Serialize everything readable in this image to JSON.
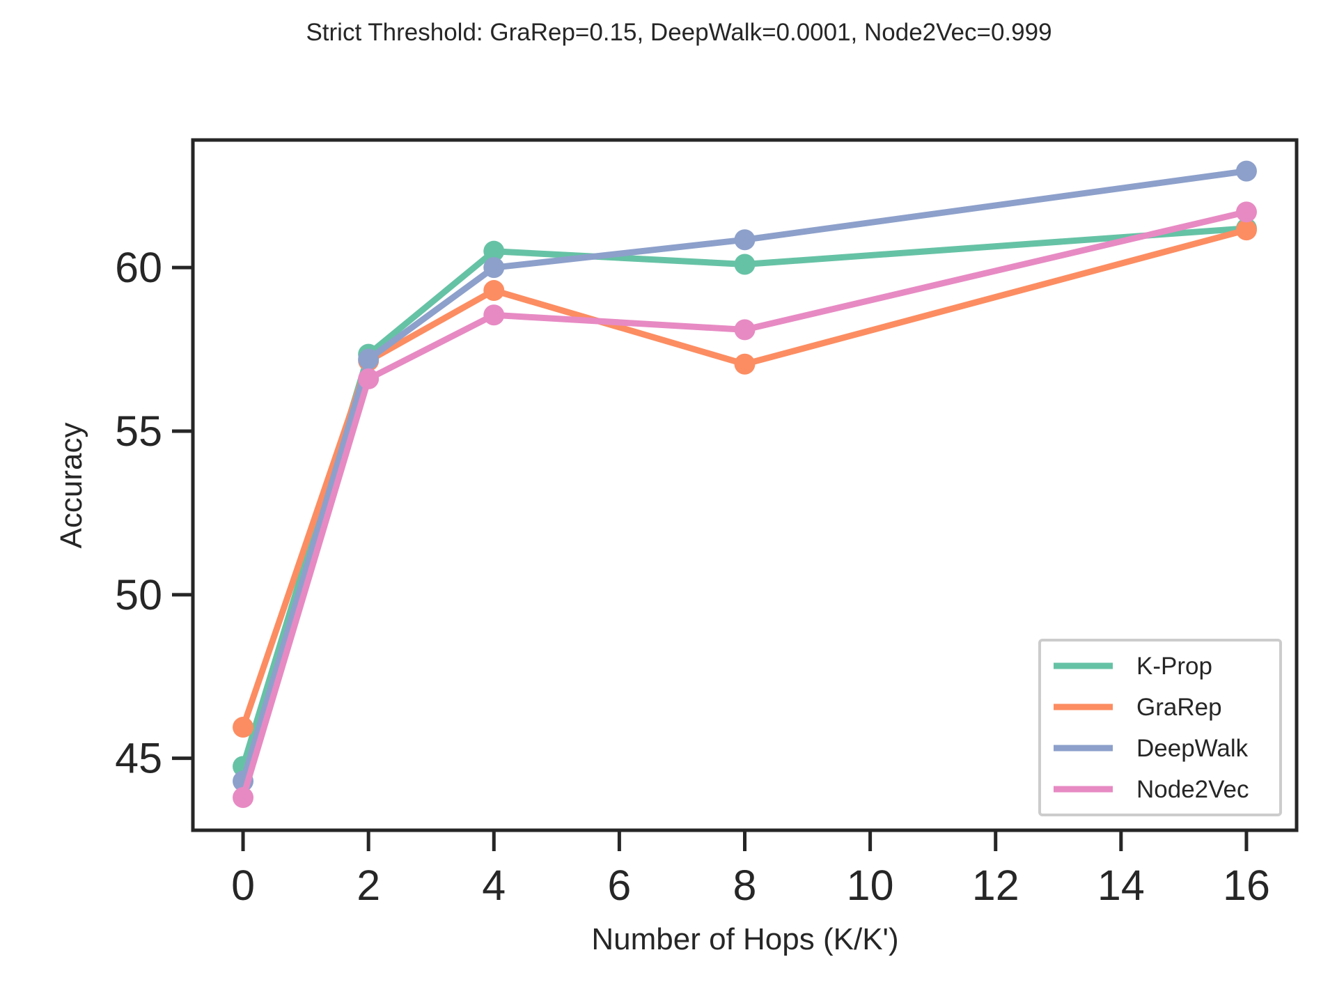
{
  "chart_data": {
    "type": "line",
    "title": "Strict Threshold: GraRep=0.15, DeepWalk=0.0001, Node2Vec=0.999",
    "xlabel": "Number of Hops (K/K')",
    "ylabel": "Accuracy",
    "x": [
      0,
      2,
      4,
      8,
      16
    ],
    "xlim": [
      -0.8,
      16.8
    ],
    "ylim": [
      42.8,
      63.9
    ],
    "xticks": [
      0,
      2,
      4,
      6,
      8,
      10,
      12,
      14,
      16
    ],
    "yticks": [
      45,
      50,
      55,
      60
    ],
    "grid": false,
    "legend_position": "lower right",
    "markers": true,
    "series": [
      {
        "name": "K-Prop",
        "color": "#66c2a5",
        "values": [
          44.75,
          57.35,
          60.5,
          60.1,
          61.2
        ]
      },
      {
        "name": "GraRep",
        "color": "#fc8d62",
        "values": [
          45.95,
          57.15,
          59.3,
          57.05,
          61.15
        ]
      },
      {
        "name": "DeepWalk",
        "color": "#8da0cb",
        "values": [
          44.3,
          57.2,
          60.0,
          60.85,
          62.95
        ]
      },
      {
        "name": "Node2Vec",
        "color": "#e78ac3",
        "values": [
          43.8,
          56.6,
          58.55,
          58.1,
          61.7
        ]
      }
    ]
  }
}
